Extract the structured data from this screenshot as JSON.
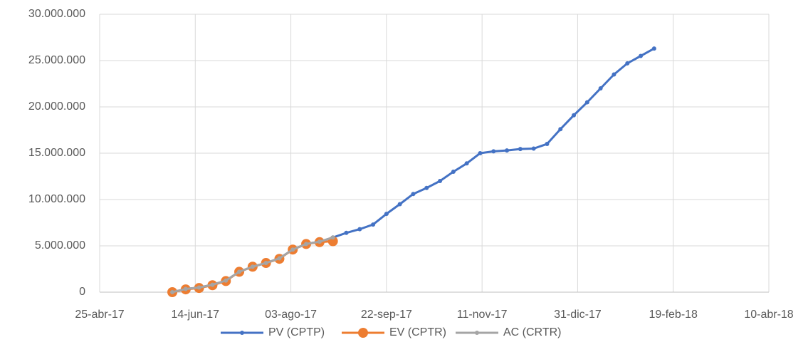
{
  "chart_data": {
    "type": "line",
    "x": [
      "2017-06-02",
      "2017-06-09",
      "2017-06-16",
      "2017-06-23",
      "2017-06-30",
      "2017-07-07",
      "2017-07-14",
      "2017-07-21",
      "2017-07-28",
      "2017-08-04",
      "2017-08-11",
      "2017-08-18",
      "2017-08-25",
      "2017-09-01",
      "2017-09-08",
      "2017-09-15",
      "2017-09-22",
      "2017-09-29",
      "2017-10-06",
      "2017-10-13",
      "2017-10-20",
      "2017-10-27",
      "2017-11-03",
      "2017-11-10",
      "2017-11-17",
      "2017-11-24",
      "2017-12-01",
      "2017-12-08",
      "2017-12-15",
      "2017-12-22",
      "2017-12-29",
      "2018-01-05",
      "2018-01-12",
      "2018-01-19",
      "2018-01-26",
      "2018-02-02",
      "2018-02-09"
    ],
    "series": [
      {
        "name": "PV (CPTP)",
        "color": "#4472c4",
        "values": [
          0,
          350000,
          500000,
          800000,
          1250000,
          2200000,
          2750000,
          3150000,
          3650000,
          4600000,
          5200000,
          5450000,
          5900000,
          6400000,
          6800000,
          7300000,
          8450000,
          9500000,
          10600000,
          11250000,
          12000000,
          13000000,
          13900000,
          15000000,
          15200000,
          15300000,
          15450000,
          15500000,
          16000000,
          17600000,
          19100000,
          20500000,
          22000000,
          23500000,
          24700000,
          25500000,
          26300000
        ]
      },
      {
        "name": "EV (CPTR)",
        "color": "#ed7d31",
        "values": [
          0,
          300000,
          450000,
          750000,
          1200000,
          2200000,
          2750000,
          3150000,
          3600000,
          4600000,
          5200000,
          5400000,
          5500000,
          null,
          null,
          null,
          null,
          null,
          null,
          null,
          null,
          null,
          null,
          null,
          null,
          null,
          null,
          null,
          null,
          null,
          null,
          null,
          null,
          null,
          null,
          null,
          null
        ]
      },
      {
        "name": "AC (CRTR)",
        "color": "#a5a5a5",
        "values": [
          0,
          350000,
          500000,
          800000,
          1250000,
          2200000,
          2750000,
          3150000,
          3650000,
          4600000,
          5200000,
          5450000,
          5900000,
          null,
          null,
          null,
          null,
          null,
          null,
          null,
          null,
          null,
          null,
          null,
          null,
          null,
          null,
          null,
          null,
          null,
          null,
          null,
          null,
          null,
          null,
          null,
          null
        ]
      }
    ],
    "xlim": [
      "2017-04-25",
      "2018-04-10"
    ],
    "xticks": [
      {
        "value": "2017-04-25",
        "label": "25-abr-17"
      },
      {
        "value": "2017-06-14",
        "label": "14-jun-17"
      },
      {
        "value": "2017-08-03",
        "label": "03-ago-17"
      },
      {
        "value": "2017-09-22",
        "label": "22-sep-17"
      },
      {
        "value": "2017-11-11",
        "label": "11-nov-17"
      },
      {
        "value": "2017-12-31",
        "label": "31-dic-17"
      },
      {
        "value": "2018-02-19",
        "label": "19-feb-18"
      },
      {
        "value": "2018-04-10",
        "label": "10-abr-18"
      }
    ],
    "ylim": [
      0,
      30000000
    ],
    "yticks": [
      0,
      {
        "value": 5000000,
        "label": "5.000.000"
      },
      {
        "value": 10000000,
        "label": "10.000.000"
      },
      {
        "value": 15000000,
        "label": "15.000.000"
      },
      {
        "value": 20000000,
        "label": "20.000.000"
      },
      {
        "value": 25000000,
        "label": "25.000.000"
      },
      {
        "value": 30000000,
        "label": "30.000.000"
      }
    ],
    "grid": true,
    "legend": "bottom"
  }
}
